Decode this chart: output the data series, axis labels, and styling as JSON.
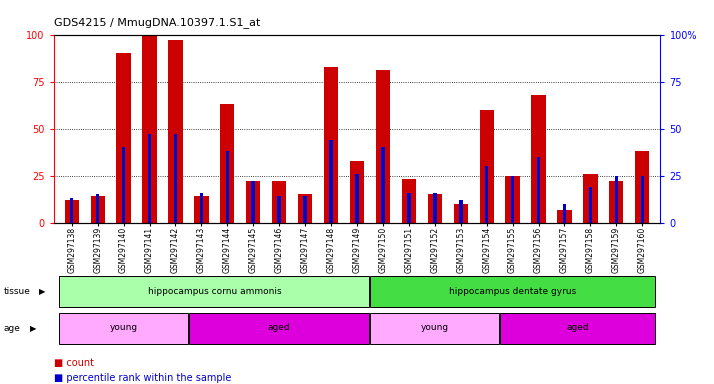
{
  "title": "GDS4215 / MmugDNA.10397.1.S1_at",
  "samples": [
    "GSM297138",
    "GSM297139",
    "GSM297140",
    "GSM297141",
    "GSM297142",
    "GSM297143",
    "GSM297144",
    "GSM297145",
    "GSM297146",
    "GSM297147",
    "GSM297148",
    "GSM297149",
    "GSM297150",
    "GSM297151",
    "GSM297152",
    "GSM297153",
    "GSM297154",
    "GSM297155",
    "GSM297156",
    "GSM297157",
    "GSM297158",
    "GSM297159",
    "GSM297160"
  ],
  "count_values": [
    12,
    14,
    90,
    100,
    97,
    14,
    63,
    22,
    22,
    15,
    83,
    33,
    81,
    23,
    15,
    10,
    60,
    25,
    68,
    7,
    26,
    22,
    38
  ],
  "percentile_values": [
    13,
    15,
    40,
    47,
    47,
    16,
    38,
    22,
    14,
    14,
    44,
    26,
    40,
    16,
    16,
    12,
    30,
    25,
    35,
    10,
    19,
    25,
    25
  ],
  "tissue_groups": [
    {
      "label": "hippocampus cornu ammonis",
      "start": 0,
      "end": 12,
      "color": "#AAFFAA"
    },
    {
      "label": "hippocampus dentate gyrus",
      "start": 12,
      "end": 23,
      "color": "#44DD44"
    }
  ],
  "age_groups": [
    {
      "label": "young",
      "start": 0,
      "end": 5,
      "color": "#FFAAFF"
    },
    {
      "label": "aged",
      "start": 5,
      "end": 12,
      "color": "#DD00DD"
    },
    {
      "label": "young",
      "start": 12,
      "end": 17,
      "color": "#FFAAFF"
    },
    {
      "label": "aged",
      "start": 17,
      "end": 23,
      "color": "#DD00DD"
    }
  ],
  "ylim": [
    0,
    100
  ],
  "yticks": [
    0,
    25,
    50,
    75,
    100
  ],
  "bar_color": "#CC0000",
  "percentile_color": "#0000CC",
  "background_color": "#FFFFFF"
}
